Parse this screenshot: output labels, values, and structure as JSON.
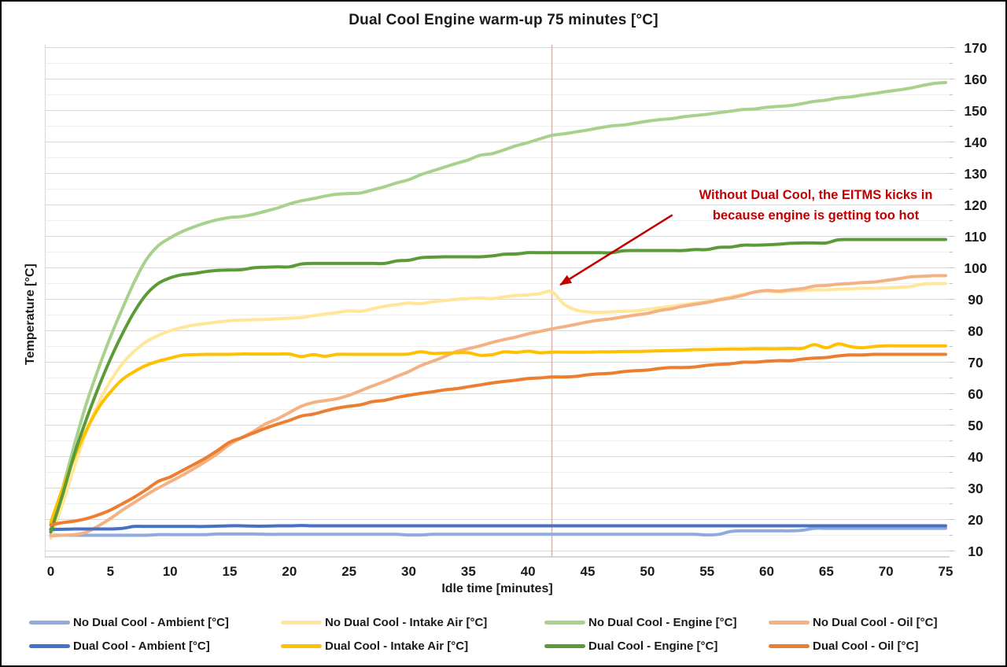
{
  "chart_data": {
    "type": "line",
    "title": "Dual Cool Engine warm-up 75 minutes [°C]",
    "xlabel": "Idle time [minutes]",
    "ylabel": "Temperature [°C]",
    "xlim": [
      0,
      75
    ],
    "ylim": [
      10,
      170
    ],
    "x_ticks": [
      0,
      5,
      10,
      15,
      20,
      25,
      30,
      35,
      40,
      45,
      50,
      55,
      60,
      65,
      70,
      75
    ],
    "y_ticks": [
      10,
      20,
      30,
      40,
      50,
      60,
      70,
      80,
      90,
      100,
      110,
      120,
      130,
      140,
      150,
      160,
      170
    ],
    "grid": "horizontal gridlines every 5 C, darker every 10 C",
    "legend_position": "bottom, 2 rows x 4 columns",
    "x_start": 0,
    "x_step_minutes": 1,
    "marker_line": {
      "x": 42,
      "color": "#EFA9A4"
    },
    "annotation": {
      "line1": "Without Dual Cool, the EITMS kicks in",
      "line2": "because engine is getting too hot",
      "color": "#C00000",
      "arrow_from": [
        52.1,
        116.8
      ],
      "arrow_to": [
        42.7,
        94.6
      ]
    },
    "series": [
      {
        "name": "No Dual Cool - Ambient [°C]",
        "color": "#8FAADC",
        "values": [
          15,
          15,
          15,
          15,
          15,
          15,
          15,
          15,
          15,
          15.2,
          15.2,
          15.2,
          15.2,
          15.2,
          15.4,
          15.4,
          15.4,
          15.4,
          15.3,
          15.3,
          15.3,
          15.3,
          15.3,
          15.3,
          15.3,
          15.3,
          15.3,
          15.3,
          15.3,
          15.3,
          15.1,
          15.1,
          15.3,
          15.3,
          15.3,
          15.3,
          15.3,
          15.3,
          15.3,
          15.3,
          15.3,
          15.3,
          15.3,
          15.3,
          15.3,
          15.3,
          15.3,
          15.3,
          15.3,
          15.3,
          15.3,
          15.3,
          15.3,
          15.3,
          15.3,
          15.1,
          15.3,
          16.2,
          16.4,
          16.4,
          16.4,
          16.4,
          16.4,
          16.6,
          17.2,
          17.2,
          17.2,
          17.2,
          17.2,
          17.2,
          17.2,
          17.2,
          17.2,
          17.2,
          17.2,
          17.2
        ]
      },
      {
        "name": "No Dual Cool - Intake Air [°C]",
        "color": "#FFE699",
        "values": [
          14,
          25,
          37,
          48,
          57,
          64,
          69.5,
          73.5,
          76.5,
          78.5,
          80,
          81,
          81.8,
          82.3,
          82.8,
          83.2,
          83.4,
          83.5,
          83.6,
          83.8,
          84,
          84.2,
          84.8,
          85.3,
          85.8,
          86.3,
          86.2,
          87,
          87.8,
          88.3,
          88.8,
          88.6,
          89.2,
          89.6,
          90,
          90.2,
          90.4,
          90.2,
          90.8,
          91.2,
          91.4,
          91.8,
          92.4,
          88.5,
          86.6,
          86,
          85.8,
          86,
          86.2,
          86.3,
          86.8,
          87.3,
          87.8,
          88.3,
          88.8,
          89.3,
          90,
          90.8,
          91.5,
          92.3,
          92.6,
          92.3,
          92.6,
          92.8,
          93,
          93,
          93.2,
          93.3,
          93.5,
          93.5,
          93.6,
          93.8,
          94,
          94.8,
          95,
          95
        ]
      },
      {
        "name": "No Dual Cool - Engine [°C]",
        "color": "#A9D18E",
        "values": [
          17,
          30,
          44,
          57,
          68,
          78,
          87,
          95.5,
          102.5,
          107,
          109.5,
          111.5,
          113,
          114.3,
          115.3,
          116,
          116.3,
          117,
          118,
          119,
          120.3,
          121.3,
          122,
          122.8,
          123.4,
          123.6,
          123.8,
          124.8,
          125.8,
          127,
          128,
          129.6,
          130.8,
          132,
          133.2,
          134.3,
          135.8,
          136.3,
          137.5,
          138.8,
          139.8,
          141,
          142.1,
          142.6,
          143.2,
          143.8,
          144.5,
          145.1,
          145.4,
          146,
          146.6,
          147.1,
          147.4,
          148,
          148.4,
          148.8,
          149.3,
          149.8,
          150.3,
          150.5,
          151,
          151.3,
          151.6,
          152.2,
          152.9,
          153.3,
          154,
          154.3,
          154.9,
          155.4,
          156,
          156.5,
          157.1,
          157.9,
          158.6,
          158.9
        ]
      },
      {
        "name": "No Dual Cool - Oil [°C]",
        "color": "#F4B183",
        "values": [
          14.8,
          15,
          15.2,
          16,
          18,
          20.3,
          23,
          25.4,
          27.8,
          30,
          32,
          34,
          36.2,
          38.5,
          41,
          43.9,
          46,
          48,
          50.4,
          52,
          54,
          56,
          57.2,
          57.8,
          58.4,
          59.5,
          61,
          62.5,
          63.9,
          65.5,
          67,
          68.9,
          70.3,
          71.8,
          73.4,
          74.3,
          75.2,
          76.3,
          77.2,
          78,
          79,
          79.8,
          80.6,
          81.3,
          82,
          82.8,
          83.4,
          83.8,
          84.4,
          85,
          85.5,
          86.4,
          87,
          87.8,
          88.4,
          89,
          89.8,
          90.4,
          91.3,
          92.3,
          92.8,
          92.6,
          93,
          93.4,
          94.2,
          94.4,
          94.8,
          95,
          95.3,
          95.5,
          96,
          96.5,
          97.1,
          97.3,
          97.5,
          97.5
        ]
      },
      {
        "name": "Dual Cool - Ambient [°C]",
        "color": "#4472C4",
        "values": [
          16.8,
          16.9,
          17,
          17,
          17,
          17,
          17.2,
          17.8,
          17.8,
          17.8,
          17.8,
          17.8,
          17.8,
          17.8,
          17.9,
          18,
          18,
          17.9,
          17.9,
          18,
          18,
          18.1,
          18,
          18,
          18,
          18,
          18,
          18,
          18,
          18,
          18,
          18,
          18,
          18,
          18,
          18,
          18,
          18,
          18,
          18,
          18,
          18,
          18,
          18,
          18,
          18,
          18,
          18,
          18,
          18,
          18,
          18,
          18,
          18,
          18,
          18,
          18,
          18,
          18,
          18,
          18,
          18,
          18,
          18,
          18,
          18,
          18,
          18,
          18,
          18,
          18,
          18,
          18,
          18,
          18,
          18
        ]
      },
      {
        "name": "Dual Cool - Intake Air [°C]",
        "color": "#FFC000",
        "values": [
          19,
          30,
          40,
          48.5,
          55.5,
          60.5,
          64.5,
          67,
          69,
          70.3,
          71.3,
          72.2,
          72.4,
          72.5,
          72.5,
          72.5,
          72.6,
          72.6,
          72.6,
          72.6,
          72.6,
          71.8,
          72.4,
          71.9,
          72.5,
          72.5,
          72.5,
          72.5,
          72.5,
          72.5,
          72.6,
          73.3,
          72.8,
          72.9,
          73,
          73,
          72.2,
          72.4,
          73.3,
          73.1,
          73.5,
          73,
          73.2,
          73.2,
          73.2,
          73.2,
          73.3,
          73.3,
          73.4,
          73.4,
          73.5,
          73.6,
          73.7,
          73.8,
          74,
          74,
          74.1,
          74.2,
          74.2,
          74.3,
          74.3,
          74.3,
          74.4,
          74.4,
          75.6,
          74.6,
          75.8,
          75,
          74.6,
          75,
          75.2,
          75.2,
          75.2,
          75.2,
          75.2,
          75.2
        ]
      },
      {
        "name": "Dual Cool - Engine [°C]",
        "color": "#5B9B37",
        "values": [
          16,
          28,
          41,
          52,
          62,
          71,
          79,
          86,
          91.5,
          95,
          96.8,
          97.8,
          98.2,
          98.8,
          99.2,
          99.3,
          99.4,
          100,
          100.2,
          100.3,
          100.3,
          101.2,
          101.4,
          101.4,
          101.4,
          101.4,
          101.4,
          101.4,
          101.4,
          102.2,
          102.4,
          103.2,
          103.4,
          103.5,
          103.5,
          103.5,
          103.5,
          103.8,
          104.3,
          104.4,
          104.8,
          104.8,
          104.8,
          104.8,
          104.8,
          104.8,
          104.8,
          104.8,
          105.4,
          105.5,
          105.5,
          105.5,
          105.5,
          105.5,
          105.8,
          105.8,
          106.5,
          106.6,
          107.2,
          107.2,
          107.3,
          107.5,
          107.8,
          107.9,
          107.9,
          107.9,
          108.9,
          109,
          109,
          109,
          109,
          109,
          109,
          109,
          109,
          109
        ]
      },
      {
        "name": "Dual Cool - Oil [°C]",
        "color": "#ED7D31",
        "values": [
          18.3,
          19,
          19.5,
          20.3,
          21.5,
          23,
          25,
          27.1,
          29.5,
          32.1,
          33.5,
          35.5,
          37.5,
          39.6,
          42,
          44.6,
          46,
          47.5,
          49,
          50.3,
          51.5,
          52.9,
          53.5,
          54.5,
          55.4,
          56,
          56.5,
          57.5,
          57.9,
          58.8,
          59.5,
          60.1,
          60.6,
          61.2,
          61.6,
          62.2,
          62.8,
          63.4,
          63.9,
          64.3,
          64.8,
          65,
          65.3,
          65.3,
          65.5,
          66,
          66.3,
          66.5,
          67,
          67.3,
          67.5,
          68,
          68.3,
          68.3,
          68.5,
          69,
          69.3,
          69.5,
          70,
          70,
          70.3,
          70.5,
          70.5,
          71,
          71.3,
          71.5,
          72,
          72.3,
          72.3,
          72.5,
          72.5,
          72.5,
          72.5,
          72.5,
          72.5,
          72.5
        ]
      }
    ]
  }
}
